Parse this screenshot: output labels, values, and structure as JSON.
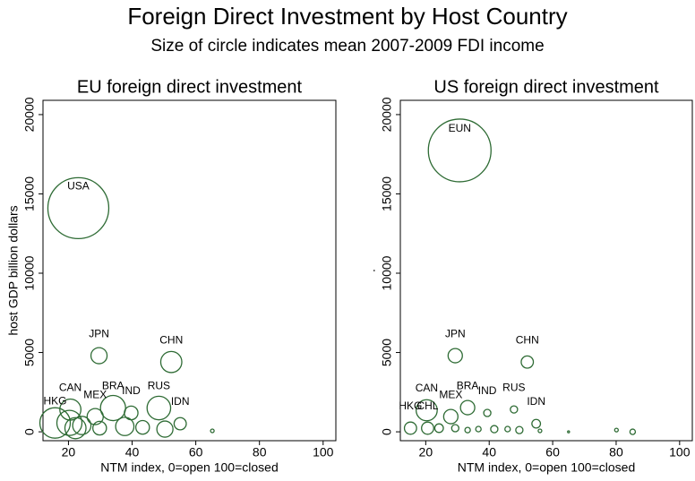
{
  "title": "Foreign Direct Investment by Host Country",
  "subtitle": "Size of circle indicates mean 2007-2009 FDI income",
  "chart_data": [
    {
      "type": "scatter",
      "title": "EU foreign direct investment",
      "x_label": "NTM index, 0=open 100=closed",
      "y_label": "host GDP billion dollars",
      "color": "#2e6b34",
      "xlim": [
        12,
        104
      ],
      "ylim": [
        -560,
        20900
      ],
      "xticks": [
        20,
        40,
        60,
        80,
        100
      ],
      "yticks": [
        0,
        5000,
        10000,
        15000,
        20000
      ],
      "labels": [
        "USA",
        "JPN",
        "CHN",
        "CAN",
        "MEX",
        "BRA",
        "IND",
        "RUS",
        "IDN",
        "HKG",
        null,
        null,
        null,
        null,
        null,
        null,
        null,
        null
      ],
      "x": [
        23.1,
        29.6,
        52.3,
        20.6,
        28.4,
        34,
        39.7,
        48.4,
        55.1,
        15.8,
        20.3,
        22.2,
        24.2,
        29.8,
        37.7,
        43.3,
        50.3,
        65.2
      ],
      "y": [
        14100,
        4800,
        4400,
        1400,
        960,
        1500,
        1190,
        1500,
        510,
        560,
        560,
        230,
        400,
        230,
        340,
        280,
        170,
        60
      ],
      "sizes": [
        100,
        7,
        12,
        12,
        7,
        17,
        5,
        15,
        4,
        25,
        17,
        12,
        9,
        5,
        9,
        5,
        7,
        0.35
      ]
    },
    {
      "type": "scatter",
      "title": "US foreign direct investment",
      "x_label": "NTM index, 0=open 100=closed",
      "y_label": ".",
      "color": "#2e6b34",
      "xlim": [
        12,
        104
      ],
      "ylim": [
        -560,
        20900
      ],
      "xticks": [
        20,
        40,
        60,
        80,
        100
      ],
      "yticks": [
        0,
        5000,
        10000,
        15000,
        20000
      ],
      "labels": [
        "EUN",
        "JPN",
        "CHN",
        "CAN",
        "MEX",
        "BRA",
        "IND",
        "RUS",
        "IDN",
        "HKG",
        "CHL",
        null,
        null,
        null,
        null,
        null,
        null,
        null,
        null,
        null,
        null,
        null
      ],
      "x": [
        30.7,
        29.3,
        52,
        20.3,
        27.9,
        33.2,
        39.4,
        47.8,
        54.8,
        15.2,
        20.6,
        24.2,
        29.3,
        33.2,
        36.6,
        41.6,
        45.8,
        49.5,
        56,
        65,
        80.1,
        85.2
      ],
      "y": [
        17740,
        4800,
        4400,
        1360,
        960,
        1525,
        1190,
        1410,
        510,
        230,
        230,
        230,
        230,
        110,
        170,
        170,
        170,
        110,
        60,
        0,
        110,
        0
      ],
      "sizes": [
        106,
        5.5,
        4,
        12,
        5.5,
        5.5,
        1.4,
        1.4,
        2,
        4,
        4,
        2,
        1.4,
        0.8,
        0.8,
        1.4,
        0.8,
        1.4,
        0.35,
        0.1,
        0.35,
        0.8
      ]
    }
  ]
}
